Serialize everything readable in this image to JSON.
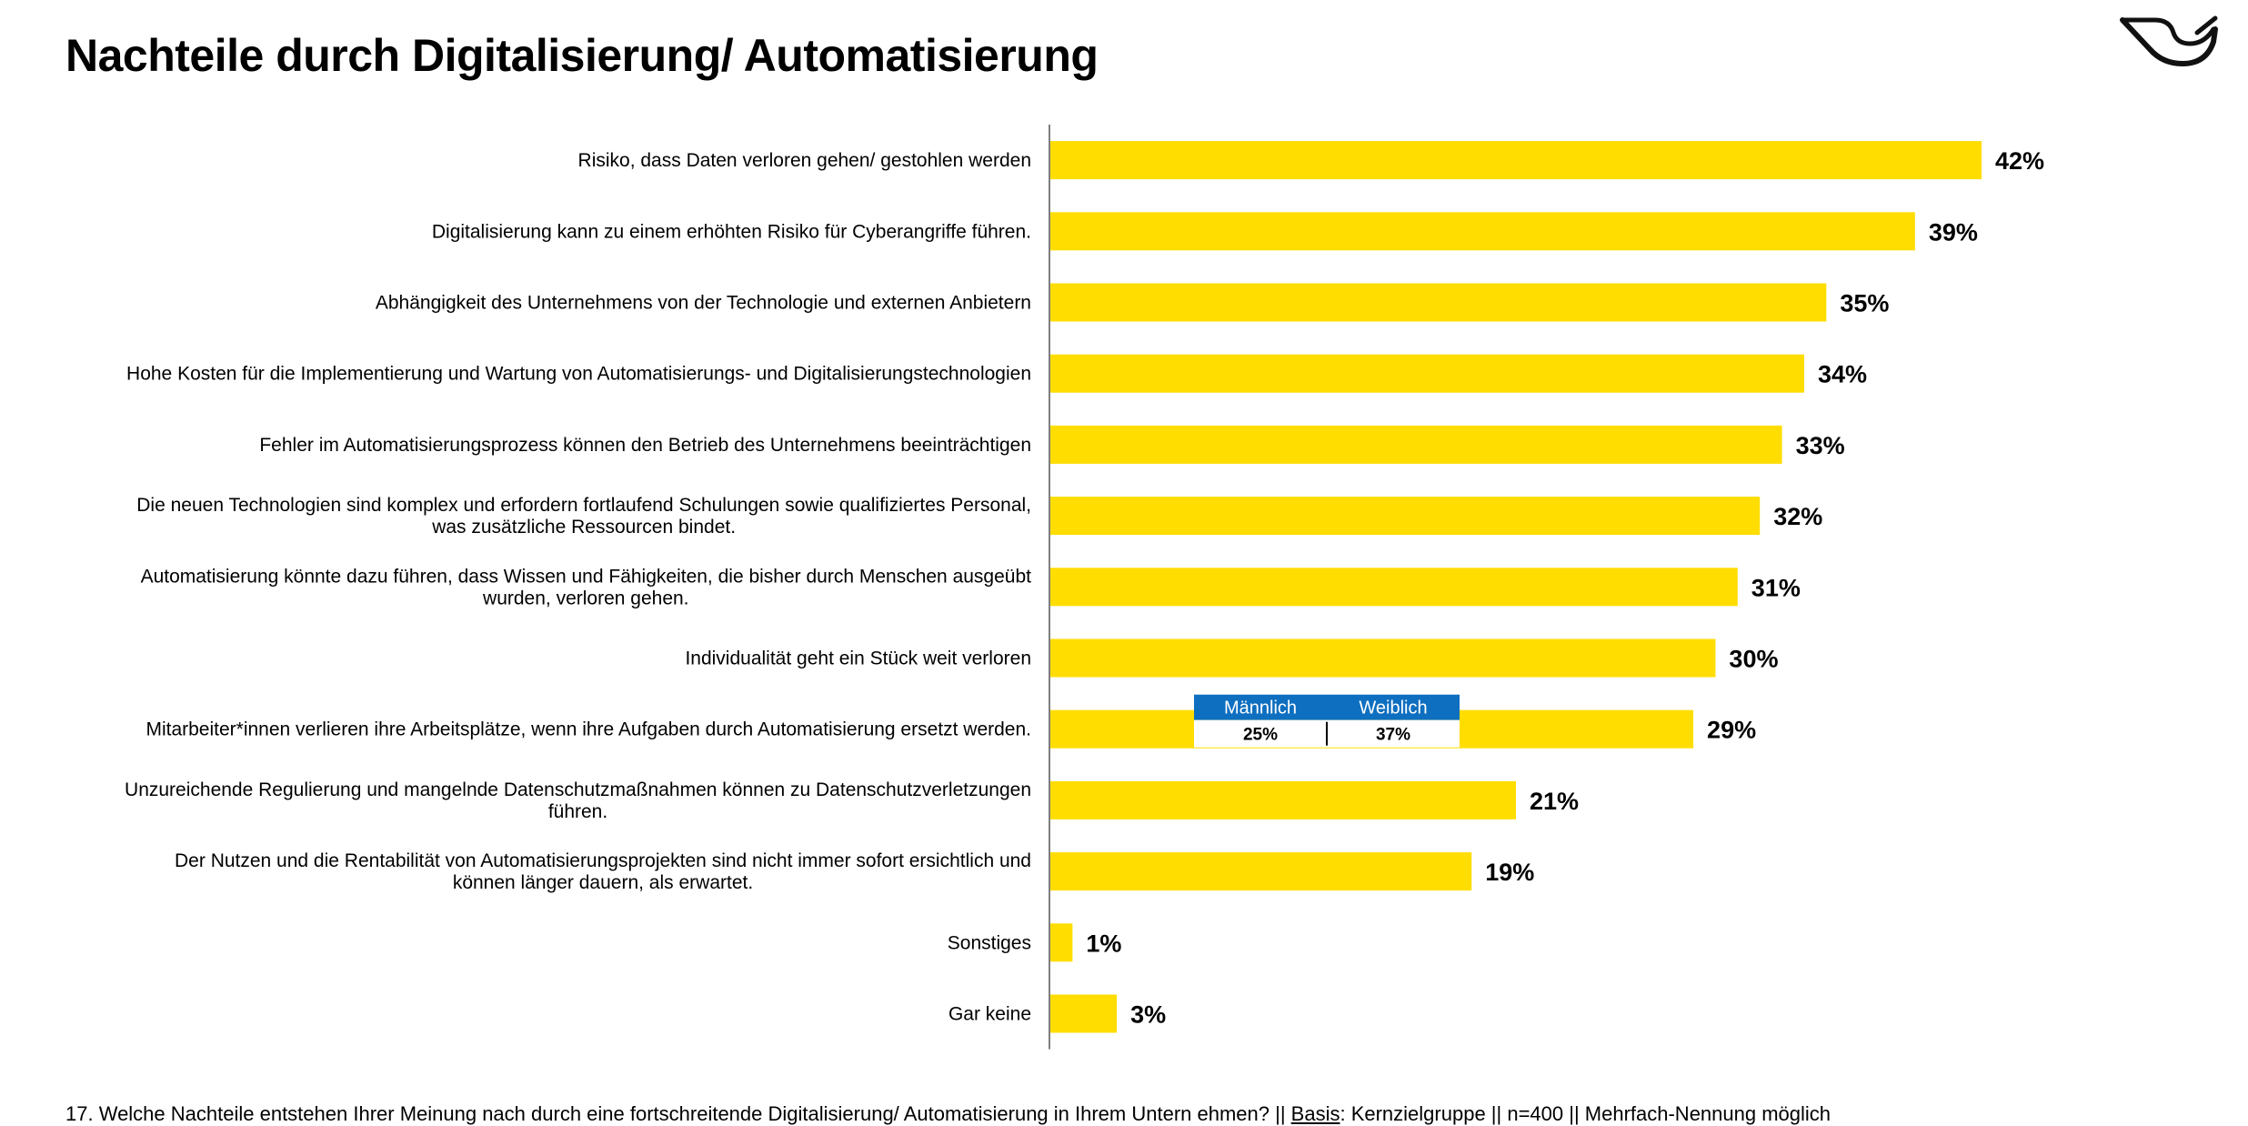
{
  "page": {
    "title": "Nachteile durch Digitalisierung/ Automatisierung",
    "footer": {
      "pre": "17. Welche Nachteile entstehen Ihrer Meinung nach durch eine fortschreitende Digitalisierung/ Automatisierung in Ihrem Untern ehmen? || ",
      "basis": "Basis",
      "post": ": Kernzielgruppe || n=400 || Mehrfach-Nennung möglich"
    },
    "logo_icon": "post-horn-icon"
  },
  "colors": {
    "bar": "#FFDD00",
    "accent_blue": "#0E6FC0",
    "axis": "#7f7f7f"
  },
  "chart_data": {
    "type": "bar",
    "orientation": "horizontal",
    "title": "Nachteile durch Digitalisierung/ Automatisierung",
    "unit": "%",
    "categories": [
      [
        "Risiko, dass Daten verloren gehen/ gestohlen werden"
      ],
      [
        "Digitalisierung kann zu einem erhöhten Risiko für Cyberangriffe führen."
      ],
      [
        "Abhängigkeit des Unternehmens von der Technologie und externen Anbietern"
      ],
      [
        "Hohe Kosten für die Implementierung und Wartung von Automatisierungs- und Digitalisierungstechnologien"
      ],
      [
        "Fehler im Automatisierungsprozess können den Betrieb des Unternehmens beeinträchtigen"
      ],
      [
        "Die neuen Technologien sind komplex und erfordern fortlaufend Schulungen sowie qualifiziertes Personal,",
        "was zusätzliche Ressourcen bindet."
      ],
      [
        "Automatisierung könnte dazu führen, dass Wissen und Fähigkeiten, die bisher durch Menschen ausgeübt",
        "wurden, verloren gehen."
      ],
      [
        "Individualität geht ein Stück weit verloren"
      ],
      [
        "Mitarbeiter*innen verlieren ihre Arbeitsplätze, wenn ihre Aufgaben durch Automatisierung ersetzt werden."
      ],
      [
        "Unzureichende Regulierung und mangelnde Datenschutzmaßnahmen können zu Datenschutzverletzungen",
        "führen."
      ],
      [
        "Der Nutzen und die Rentabilität von Automatisierungsprojekten sind nicht immer sofort ersichtlich und",
        "können länger dauern, als erwartet."
      ],
      [
        "Sonstiges"
      ],
      [
        "Gar keine"
      ]
    ],
    "values": [
      42,
      39,
      35,
      34,
      33,
      32,
      31,
      30,
      29,
      21,
      19,
      1,
      3
    ],
    "value_labels": [
      "42%",
      "39%",
      "35%",
      "34%",
      "33%",
      "32%",
      "31%",
      "30%",
      "29%",
      "21%",
      "19%",
      "1%",
      "3%"
    ],
    "xlim": [
      0,
      42
    ],
    "grid": false,
    "annotation": {
      "row": 8,
      "headers": [
        "Männlich",
        "Weiblich"
      ],
      "values": [
        "25%",
        "37%"
      ]
    }
  }
}
